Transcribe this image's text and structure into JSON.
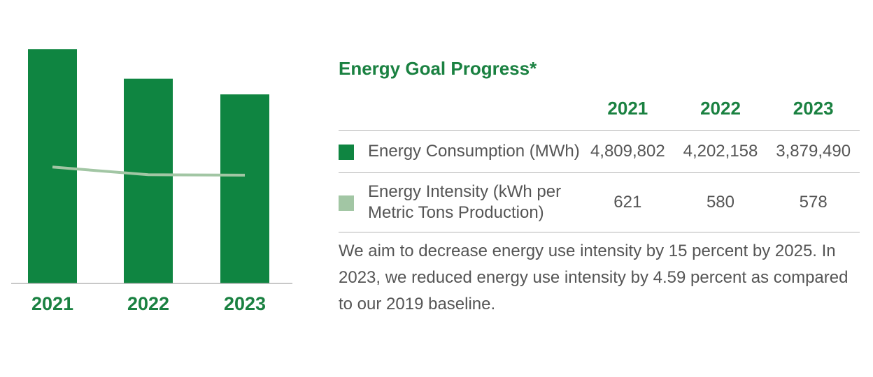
{
  "colors": {
    "brand_green": "#1a8141",
    "bar_green": "#0f8541",
    "intensity_green": "#a2c6a4",
    "text_gray": "#555555",
    "rule_gray": "#b5b5b5"
  },
  "chart_data": {
    "type": "bar",
    "categories": [
      "2021",
      "2022",
      "2023"
    ],
    "series": [
      {
        "type": "bar",
        "values": [
          4809802,
          4202158,
          3879490
        ]
      },
      {
        "type": "line",
        "values": [
          621,
          580,
          578
        ]
      }
    ],
    "ylim": [
      0,
      5000000
    ],
    "y2lim": [
      0,
      1300
    ],
    "grid": false,
    "legend": "table at right"
  },
  "panel": {
    "title": "Energy Goal Progress*",
    "years": [
      "2021",
      "2022",
      "2023"
    ],
    "rows": [
      {
        "label": "Energy Consumption (MWh)",
        "values": [
          "4,809,802",
          "4,202,158",
          "3,879,490"
        ]
      },
      {
        "label_line1": "Energy Intensity (kWh per",
        "label_line2": "Metric Tons Production)",
        "values": [
          "621",
          "580",
          "578"
        ]
      }
    ],
    "note": "We aim to decrease energy use intensity by 15 percent by 2025. In 2023, we reduced energy use intensity by 4.59 percent as compared to our 2019 baseline."
  }
}
